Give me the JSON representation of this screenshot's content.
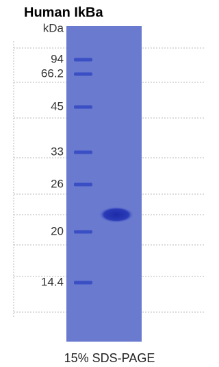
{
  "header": {
    "title": "Human IkBa"
  },
  "gel": {
    "unit": "kDa",
    "markers": [
      "94",
      "66.2",
      "45",
      "33",
      "26",
      "20",
      "14.4"
    ]
  },
  "footer": {
    "caption": "15% SDS-PAGE"
  }
}
